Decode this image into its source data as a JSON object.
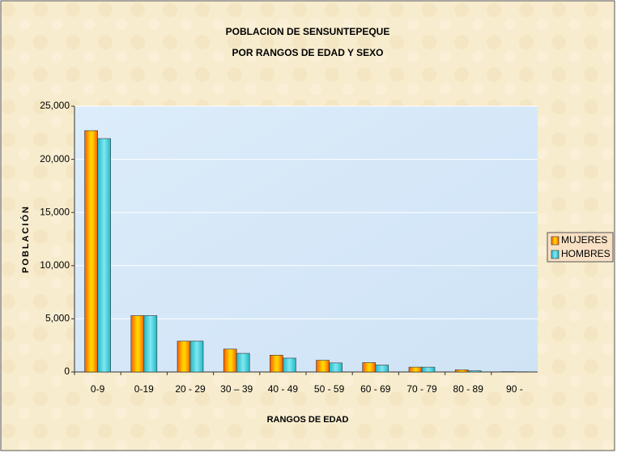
{
  "chart_data": {
    "type": "bar",
    "title": "POBLACION DE SENSUNTEPEQUE",
    "subtitle": "POR RANGOS DE EDAD Y SEXO",
    "x_label": "RANGOS DE EDAD",
    "y_label": "POBLACIÓN",
    "categories": [
      "0-9",
      "0-19",
      "20 - 29",
      "30 – 39",
      "40 - 49",
      "50 - 59",
      "60 - 69",
      "70 - 79",
      "80 - 89",
      "90 -"
    ],
    "series": [
      {
        "name": "MUJERES",
        "color": "#ff5a00",
        "values": [
          22700,
          5300,
          2900,
          2150,
          1580,
          1100,
          880,
          450,
          200,
          30
        ]
      },
      {
        "name": "HOMBRES",
        "color": "#22b8c8",
        "values": [
          21950,
          5300,
          2900,
          1750,
          1300,
          850,
          650,
          450,
          110,
          20
        ]
      }
    ],
    "ylim": [
      0,
      25000
    ],
    "yticks": [
      0,
      {
        "value": 5000,
        "label": "5,000"
      },
      {
        "value": 10000,
        "label": "10,000"
      },
      {
        "value": 15000,
        "label": "15,000"
      },
      {
        "value": 20000,
        "label": "20,000"
      },
      {
        "value": 25000,
        "label": "25,000"
      }
    ],
    "grid": true,
    "legend": "right"
  }
}
